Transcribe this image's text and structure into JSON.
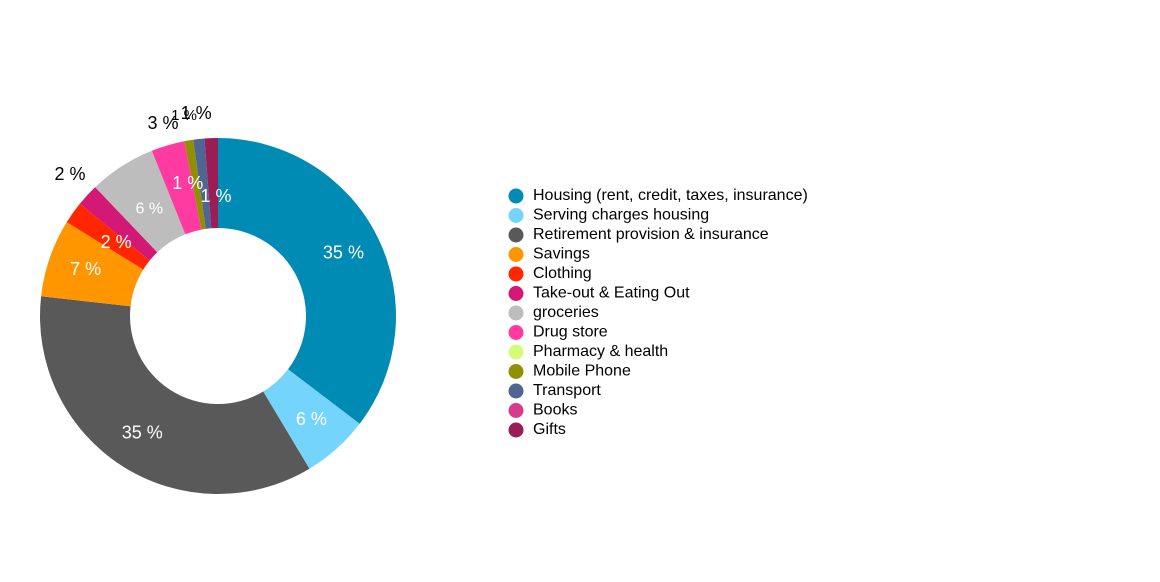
{
  "chart_data": {
    "type": "pie",
    "variant": "donut",
    "legend_position": "right",
    "labels_inside_color": "#ffffff",
    "labels_outside_color": "#000000",
    "series": [
      {
        "name": "Housing (rent, credit, taxes, insurance)",
        "value": 35,
        "label": "35 %",
        "color": "#008bb5"
      },
      {
        "name": "Serving charges housing",
        "value": 6,
        "label": "6 %",
        "color": "#75d4fb"
      },
      {
        "name": "Retirement provision & insurance",
        "value": 35,
        "label": "35 %",
        "color": "#595959"
      },
      {
        "name": "Savings",
        "value": 7,
        "label": "7 %",
        "color": "#ff9600"
      },
      {
        "name": "Clothing",
        "value": 2,
        "label": "2 %",
        "color": "#ff2600"
      },
      {
        "name": "Take-out & Eating Out",
        "value": 2,
        "label": "2 %",
        "color": "#d31876"
      },
      {
        "name": "groceries",
        "value": 6,
        "label": "6 %",
        "color": "#bdbdbd"
      },
      {
        "name": "Drug store",
        "value": 3,
        "label": "3 %",
        "color": "#ff3aa0"
      },
      {
        "name": "Pharmacy & health",
        "value": 0,
        "label": "",
        "color": "#d5fc79"
      },
      {
        "name": "Mobile Phone",
        "value": 0.8,
        "label": "1 %",
        "color": "#929000"
      },
      {
        "name": "Transport",
        "value": 1,
        "label": "1 %",
        "color": "#4f6593"
      },
      {
        "name": "Books",
        "value": 0,
        "label": "",
        "color": "#d93b8c"
      },
      {
        "name": "Gifts",
        "value": 1.2,
        "label": "1 %",
        "color": "#9a1d55"
      }
    ]
  }
}
